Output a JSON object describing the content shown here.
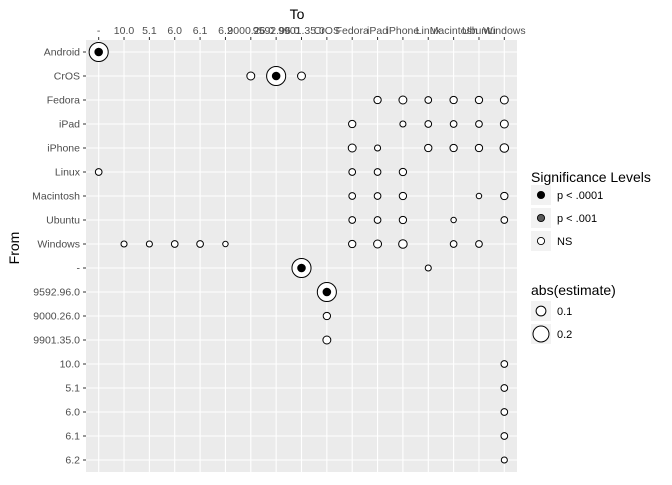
{
  "chart_data": {
    "type": "scatter",
    "title": "",
    "xlabel": "To",
    "ylabel": "From",
    "x_categories": [
      "-",
      "10.0",
      "5.1",
      "6.0",
      "6.1",
      "6.2",
      "9000.26.0",
      "9592.96.0",
      "9901.35.0",
      "CrOS",
      "Fedora",
      "iPad",
      "iPhone",
      "Linux",
      "Macintosh",
      "Ubuntu",
      "Windows"
    ],
    "y_categories": [
      "Android",
      "CrOS",
      "Fedora",
      "iPad",
      "iPhone",
      "Linux",
      "Macintosh",
      "Ubuntu",
      "Windows",
      "-",
      "9592.96.0",
      "9000.26.0",
      "9901.35.0",
      "10.0",
      "5.1",
      "6.0",
      "6.1",
      "6.2"
    ],
    "points": [
      {
        "from": "Android",
        "to": "-",
        "abs_estimate": 0.25,
        "significance": "p < .0001"
      },
      {
        "from": "CrOS",
        "to": "9000.26.0",
        "abs_estimate": 0.07,
        "significance": "NS"
      },
      {
        "from": "CrOS",
        "to": "9592.96.0",
        "abs_estimate": 0.25,
        "significance": "p < .0001"
      },
      {
        "from": "CrOS",
        "to": "9901.35.0",
        "abs_estimate": 0.07,
        "significance": "NS"
      },
      {
        "from": "Fedora",
        "to": "iPad",
        "abs_estimate": 0.06,
        "significance": "NS"
      },
      {
        "from": "Fedora",
        "to": "iPhone",
        "abs_estimate": 0.07,
        "significance": "NS"
      },
      {
        "from": "Fedora",
        "to": "Linux",
        "abs_estimate": 0.05,
        "significance": "NS"
      },
      {
        "from": "Fedora",
        "to": "Macintosh",
        "abs_estimate": 0.06,
        "significance": "NS"
      },
      {
        "from": "Fedora",
        "to": "Ubuntu",
        "abs_estimate": 0.06,
        "significance": "NS"
      },
      {
        "from": "Fedora",
        "to": "Windows",
        "abs_estimate": 0.07,
        "significance": "NS"
      },
      {
        "from": "iPad",
        "to": "Fedora",
        "abs_estimate": 0.06,
        "significance": "NS"
      },
      {
        "from": "iPad",
        "to": "iPhone",
        "abs_estimate": 0.04,
        "significance": "NS"
      },
      {
        "from": "iPad",
        "to": "Linux",
        "abs_estimate": 0.05,
        "significance": "NS"
      },
      {
        "from": "iPad",
        "to": "Macintosh",
        "abs_estimate": 0.05,
        "significance": "NS"
      },
      {
        "from": "iPad",
        "to": "Ubuntu",
        "abs_estimate": 0.05,
        "significance": "NS"
      },
      {
        "from": "iPad",
        "to": "Windows",
        "abs_estimate": 0.07,
        "significance": "NS"
      },
      {
        "from": "iPhone",
        "to": "Fedora",
        "abs_estimate": 0.07,
        "significance": "NS"
      },
      {
        "from": "iPhone",
        "to": "iPad",
        "abs_estimate": 0.04,
        "significance": "NS"
      },
      {
        "from": "iPhone",
        "to": "Linux",
        "abs_estimate": 0.06,
        "significance": "NS"
      },
      {
        "from": "iPhone",
        "to": "Macintosh",
        "abs_estimate": 0.06,
        "significance": "NS"
      },
      {
        "from": "iPhone",
        "to": "Ubuntu",
        "abs_estimate": 0.06,
        "significance": "NS"
      },
      {
        "from": "iPhone",
        "to": "Windows",
        "abs_estimate": 0.08,
        "significance": "NS"
      },
      {
        "from": "Linux",
        "to": "-",
        "abs_estimate": 0.05,
        "significance": "NS"
      },
      {
        "from": "Linux",
        "to": "Fedora",
        "abs_estimate": 0.05,
        "significance": "NS"
      },
      {
        "from": "Linux",
        "to": "iPad",
        "abs_estimate": 0.05,
        "significance": "NS"
      },
      {
        "from": "Linux",
        "to": "iPhone",
        "abs_estimate": 0.06,
        "significance": "NS"
      },
      {
        "from": "Macintosh",
        "to": "Fedora",
        "abs_estimate": 0.05,
        "significance": "NS"
      },
      {
        "from": "Macintosh",
        "to": "iPad",
        "abs_estimate": 0.05,
        "significance": "NS"
      },
      {
        "from": "Macintosh",
        "to": "iPhone",
        "abs_estimate": 0.06,
        "significance": "NS"
      },
      {
        "from": "Macintosh",
        "to": "Ubuntu",
        "abs_estimate": 0.03,
        "significance": "NS"
      },
      {
        "from": "Macintosh",
        "to": "Windows",
        "abs_estimate": 0.06,
        "significance": "NS"
      },
      {
        "from": "Ubuntu",
        "to": "Fedora",
        "abs_estimate": 0.05,
        "significance": "NS"
      },
      {
        "from": "Ubuntu",
        "to": "iPad",
        "abs_estimate": 0.05,
        "significance": "NS"
      },
      {
        "from": "Ubuntu",
        "to": "iPhone",
        "abs_estimate": 0.06,
        "significance": "NS"
      },
      {
        "from": "Ubuntu",
        "to": "Macintosh",
        "abs_estimate": 0.03,
        "significance": "NS"
      },
      {
        "from": "Ubuntu",
        "to": "Windows",
        "abs_estimate": 0.05,
        "significance": "NS"
      },
      {
        "from": "Windows",
        "to": "10.0",
        "abs_estimate": 0.04,
        "significance": "NS"
      },
      {
        "from": "Windows",
        "to": "5.1",
        "abs_estimate": 0.04,
        "significance": "NS"
      },
      {
        "from": "Windows",
        "to": "6.0",
        "abs_estimate": 0.05,
        "significance": "NS"
      },
      {
        "from": "Windows",
        "to": "6.1",
        "abs_estimate": 0.05,
        "significance": "NS"
      },
      {
        "from": "Windows",
        "to": "6.2",
        "abs_estimate": 0.03,
        "significance": "NS"
      },
      {
        "from": "Windows",
        "to": "Fedora",
        "abs_estimate": 0.06,
        "significance": "NS"
      },
      {
        "from": "Windows",
        "to": "iPad",
        "abs_estimate": 0.07,
        "significance": "NS"
      },
      {
        "from": "Windows",
        "to": "iPhone",
        "abs_estimate": 0.08,
        "significance": "NS"
      },
      {
        "from": "Windows",
        "to": "Macintosh",
        "abs_estimate": 0.05,
        "significance": "NS"
      },
      {
        "from": "Windows",
        "to": "Ubuntu",
        "abs_estimate": 0.05,
        "significance": "NS"
      },
      {
        "from": "-",
        "to": "9901.35.0",
        "abs_estimate": 0.25,
        "significance": "p < .0001"
      },
      {
        "from": "-",
        "to": "Linux",
        "abs_estimate": 0.04,
        "significance": "NS"
      },
      {
        "from": "9592.96.0",
        "to": "CrOS",
        "abs_estimate": 0.25,
        "significance": "p < .0001"
      },
      {
        "from": "9000.26.0",
        "to": "CrOS",
        "abs_estimate": 0.06,
        "significance": "NS"
      },
      {
        "from": "9901.35.0",
        "to": "CrOS",
        "abs_estimate": 0.07,
        "significance": "NS"
      },
      {
        "from": "10.0",
        "to": "Windows",
        "abs_estimate": 0.05,
        "significance": "NS"
      },
      {
        "from": "5.1",
        "to": "Windows",
        "abs_estimate": 0.05,
        "significance": "NS"
      },
      {
        "from": "6.0",
        "to": "Windows",
        "abs_estimate": 0.05,
        "significance": "NS"
      },
      {
        "from": "6.1",
        "to": "Windows",
        "abs_estimate": 0.05,
        "significance": "NS"
      },
      {
        "from": "6.2",
        "to": "Windows",
        "abs_estimate": 0.04,
        "significance": "NS"
      }
    ],
    "legend": {
      "placement": "right",
      "significance_title": "Significance Levels",
      "significance_levels": [
        {
          "label": "p < .0001",
          "color": "#000000"
        },
        {
          "label": "p < .001",
          "color": "#595959"
        },
        {
          "label": "NS",
          "color": "#ffffff"
        }
      ],
      "size_title": "abs(estimate)",
      "size_breaks": [
        {
          "label": "0.1",
          "value": 0.1
        },
        {
          "label": "0.2",
          "value": 0.2
        }
      ]
    },
    "grid": true,
    "colors": {
      "panel_background": "#ebebeb",
      "gridline": "#ffffff",
      "point_outline": "#000000",
      "text": "#000000",
      "tick_text": "#4d4d4d"
    }
  }
}
